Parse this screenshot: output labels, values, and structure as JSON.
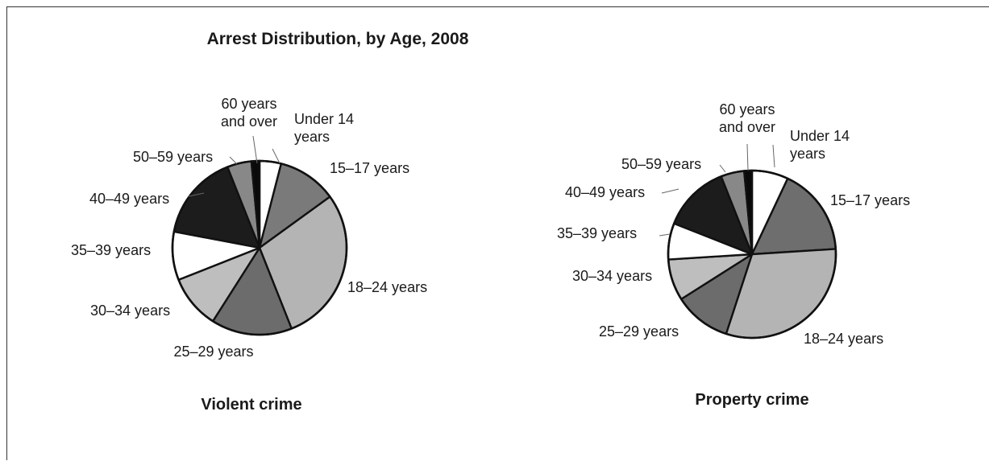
{
  "chart_data": [
    {
      "type": "pie",
      "title": "Arrest Distribution, by Age, 2008",
      "subtitle": "Violent crime",
      "slices": [
        {
          "label": "Under 14 years",
          "value": 4.0,
          "color": "#ffffff"
        },
        {
          "label": "15–17 years",
          "value": 11.0,
          "color": "#7a7a7a"
        },
        {
          "label": "18–24 years",
          "value": 29.0,
          "color": "#b4b4b4"
        },
        {
          "label": "25–29 years",
          "value": 15.0,
          "color": "#6c6c6c"
        },
        {
          "label": "30–34 years",
          "value": 10.0,
          "color": "#bebebe"
        },
        {
          "label": "35–39 years",
          "value": 9.0,
          "color": "#ffffff"
        },
        {
          "label": "40–49 years",
          "value": 16.0,
          "color": "#1c1c1c"
        },
        {
          "label": "50–59 years",
          "value": 4.5,
          "color": "#888888"
        },
        {
          "label": "60 years and over",
          "value": 1.5,
          "color": "#0a0a0a"
        }
      ]
    },
    {
      "type": "pie",
      "subtitle": "Property crime",
      "slices": [
        {
          "label": "Under 14 years",
          "value": 7.0,
          "color": "#ffffff"
        },
        {
          "label": "15–17 years",
          "value": 17.0,
          "color": "#6e6e6e"
        },
        {
          "label": "18–24 years",
          "value": 31.0,
          "color": "#b4b4b4"
        },
        {
          "label": "25–29 years",
          "value": 11.0,
          "color": "#6c6c6c"
        },
        {
          "label": "30–34 years",
          "value": 8.0,
          "color": "#bebebe"
        },
        {
          "label": "35–39 years",
          "value": 7.0,
          "color": "#ffffff"
        },
        {
          "label": "40–49 years",
          "value": 13.0,
          "color": "#1c1c1c"
        },
        {
          "label": "50–59 years",
          "value": 4.5,
          "color": "#888888"
        },
        {
          "label": "60 years and over",
          "value": 1.5,
          "color": "#0a0a0a"
        }
      ]
    }
  ]
}
